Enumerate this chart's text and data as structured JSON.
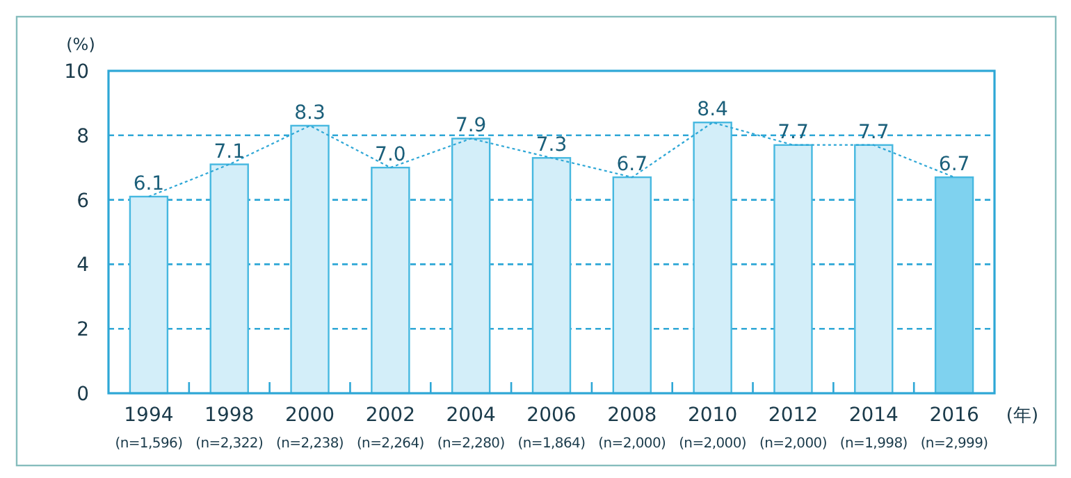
{
  "chart_data": {
    "type": "bar",
    "ylabel": "(%)",
    "xlabel": "(年)",
    "categories": [
      "1994\n(n=1,596)",
      "1998\n(n=2,322)",
      "2000\n(n=2,238)",
      "2002\n(n=2,264)",
      "2004\n(n=2,280)",
      "2006\n(n=1,864)",
      "2008\n(n=2,000)",
      "2010\n(n=2,000)",
      "2012\n(n=2,000)",
      "2014\n(n=1,998)",
      "2016\n(n=2,999)"
    ],
    "ylim": [
      0,
      10
    ],
    "yticks": [
      0,
      2,
      4,
      6,
      8,
      10
    ],
    "grid": "y",
    "series": [
      {
        "value_labels": [
          "6.1",
          "7.1",
          "8.3",
          "7.0",
          "7.9",
          "7.3",
          "6.7",
          "8.4",
          "7.7",
          "7.7",
          "6.7"
        ],
        "colors": [
          "#d3eef9",
          "#d3eef9",
          "#d3eef9",
          "#d3eef9",
          "#d3eef9",
          "#d3eef9",
          "#d3eef9",
          "#d3eef9",
          "#d3eef9",
          "#d3eef9",
          "#7fd2ef"
        ],
        "values": [
          6.1,
          7.1,
          8.3,
          7.0,
          7.9,
          7.3,
          6.7,
          8.4,
          7.7,
          7.7,
          6.7
        ]
      },
      {
        "type": "line",
        "color": "#2ea7d6",
        "line_style": "dotted",
        "marker": "none",
        "values": [
          6.1,
          7.1,
          8.3,
          7.0,
          7.9,
          7.3,
          6.7,
          8.4,
          7.7,
          7.7,
          6.7
        ]
      }
    ]
  }
}
